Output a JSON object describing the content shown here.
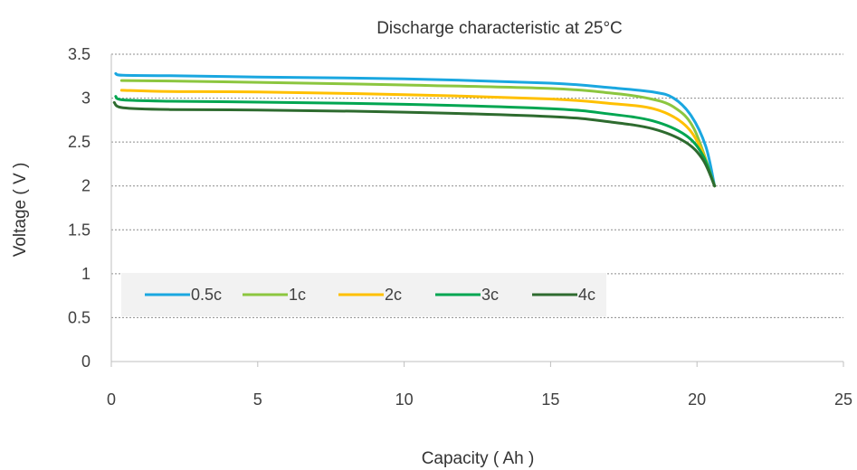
{
  "chart_data": {
    "type": "line",
    "title": "Discharge characteristic at 25°C",
    "xlabel": "Capacity ( Ah )",
    "ylabel": "Voltage ( V )",
    "xlim": [
      0,
      25
    ],
    "ylim": [
      0,
      3.5
    ],
    "xticks": [
      0,
      5,
      10,
      15,
      20,
      25
    ],
    "yticks": [
      0,
      0.5,
      1,
      1.5,
      2,
      2.5,
      3,
      3.5
    ],
    "xtick_labels": [
      "0",
      "5",
      "10",
      "15",
      "20",
      "25"
    ],
    "ytick_labels": [
      "0",
      "0.5",
      "1",
      "1.5",
      "2",
      "2.5",
      "3",
      "3.5"
    ],
    "grid": "horizontal dashed",
    "legend_position": "lower-left inside plot",
    "series": [
      {
        "name": "0.5c",
        "color": "#1AA7E0",
        "points": [
          [
            0.15,
            3.28
          ],
          [
            0.4,
            3.26
          ],
          [
            2,
            3.255
          ],
          [
            5,
            3.24
          ],
          [
            10,
            3.22
          ],
          [
            15,
            3.17
          ],
          [
            17,
            3.12
          ],
          [
            18.5,
            3.07
          ],
          [
            19.2,
            3.0
          ],
          [
            19.8,
            2.8
          ],
          [
            20.3,
            2.45
          ],
          [
            20.6,
            2.0
          ]
        ]
      },
      {
        "name": "1c",
        "color": "#8CC63F",
        "points": [
          [
            0.35,
            3.2
          ],
          [
            2,
            3.195
          ],
          [
            5,
            3.18
          ],
          [
            10,
            3.15
          ],
          [
            15,
            3.11
          ],
          [
            17,
            3.06
          ],
          [
            18.3,
            3.0
          ],
          [
            19.2,
            2.9
          ],
          [
            19.9,
            2.65
          ],
          [
            20.6,
            2.0
          ]
        ]
      },
      {
        "name": "2c",
        "color": "#FFC000",
        "points": [
          [
            0.35,
            3.09
          ],
          [
            2,
            3.075
          ],
          [
            5,
            3.07
          ],
          [
            10,
            3.04
          ],
          [
            15,
            2.99
          ],
          [
            17,
            2.94
          ],
          [
            18.5,
            2.88
          ],
          [
            19.5,
            2.72
          ],
          [
            20.1,
            2.45
          ],
          [
            20.6,
            2.0
          ]
        ]
      },
      {
        "name": "3c",
        "color": "#00A651",
        "points": [
          [
            0.15,
            3.02
          ],
          [
            0.4,
            2.98
          ],
          [
            2,
            2.965
          ],
          [
            5,
            2.955
          ],
          [
            10,
            2.93
          ],
          [
            15,
            2.88
          ],
          [
            17,
            2.82
          ],
          [
            18.5,
            2.74
          ],
          [
            19.6,
            2.58
          ],
          [
            20.2,
            2.35
          ],
          [
            20.6,
            2.0
          ]
        ]
      },
      {
        "name": "4c",
        "color": "#2E6B2F",
        "points": [
          [
            0.1,
            2.95
          ],
          [
            0.4,
            2.89
          ],
          [
            2,
            2.87
          ],
          [
            5,
            2.865
          ],
          [
            10,
            2.84
          ],
          [
            15,
            2.79
          ],
          [
            17,
            2.73
          ],
          [
            18.5,
            2.65
          ],
          [
            19.6,
            2.5
          ],
          [
            20.2,
            2.3
          ],
          [
            20.6,
            2.0
          ]
        ]
      }
    ]
  },
  "colors": {
    "gridline": "#8C8C8C",
    "axis": "#BFBFBF",
    "legend_background": "#F2F2F2"
  }
}
